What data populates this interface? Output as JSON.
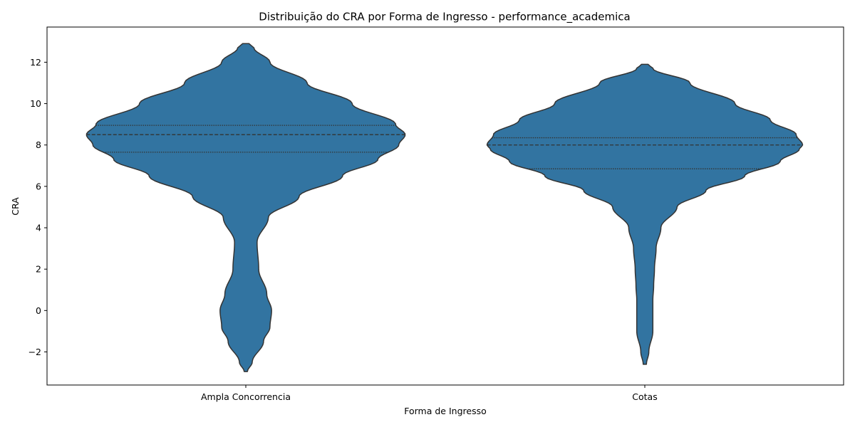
{
  "chart_data": {
    "type": "violin",
    "title": "Distribuição do CRA por Forma de Ingresso - performance_academica",
    "xlabel": "Forma de Ingresso",
    "ylabel": "CRA",
    "ylim": [
      -3.6,
      13.7
    ],
    "yticks": [
      -2,
      0,
      2,
      4,
      6,
      8,
      10,
      12
    ],
    "ytick_labels": [
      "−2",
      "0",
      "2",
      "4",
      "6",
      "8",
      "10",
      "12"
    ],
    "grid": false,
    "categories": [
      "Ampla Concorrencia",
      "Cotas"
    ],
    "colors": {
      "violin_fill": "#3274a1",
      "violin_edge": "#333333",
      "axis": "#000000"
    },
    "violins": [
      {
        "category": "Ampla Concorrencia",
        "ymin": -2.95,
        "ymax": 12.9,
        "quartiles": {
          "q1": 7.65,
          "median": 8.5,
          "q3": 8.95
        },
        "density_profile": [
          [
            -2.95,
            0.01
          ],
          [
            -2.5,
            0.04
          ],
          [
            -1.5,
            0.11
          ],
          [
            -0.8,
            0.15
          ],
          [
            0.0,
            0.16
          ],
          [
            0.8,
            0.13
          ],
          [
            2.0,
            0.08
          ],
          [
            3.3,
            0.07
          ],
          [
            4.5,
            0.14
          ],
          [
            5.5,
            0.33
          ],
          [
            6.5,
            0.6
          ],
          [
            7.3,
            0.82
          ],
          [
            8.0,
            0.95
          ],
          [
            8.5,
            0.99
          ],
          [
            9.0,
            0.93
          ],
          [
            10.0,
            0.66
          ],
          [
            11.0,
            0.38
          ],
          [
            12.0,
            0.15
          ],
          [
            12.7,
            0.05
          ],
          [
            12.9,
            0.02
          ]
        ]
      },
      {
        "category": "Cotas",
        "ymin": -2.6,
        "ymax": 11.9,
        "quartiles": {
          "q1": 6.85,
          "median": 8.0,
          "q3": 8.35
        },
        "density_profile": [
          [
            -2.6,
            0.01
          ],
          [
            -2.0,
            0.025
          ],
          [
            -1.0,
            0.05
          ],
          [
            0.0,
            0.05
          ],
          [
            0.5,
            0.05
          ],
          [
            1.2,
            0.055
          ],
          [
            2.0,
            0.06
          ],
          [
            3.0,
            0.07
          ],
          [
            4.0,
            0.1
          ],
          [
            5.0,
            0.2
          ],
          [
            5.8,
            0.38
          ],
          [
            6.5,
            0.62
          ],
          [
            7.2,
            0.84
          ],
          [
            7.8,
            0.96
          ],
          [
            8.0,
            0.98
          ],
          [
            8.5,
            0.94
          ],
          [
            9.2,
            0.78
          ],
          [
            10.0,
            0.56
          ],
          [
            11.0,
            0.28
          ],
          [
            11.7,
            0.05
          ],
          [
            11.9,
            0.02
          ]
        ]
      }
    ]
  }
}
